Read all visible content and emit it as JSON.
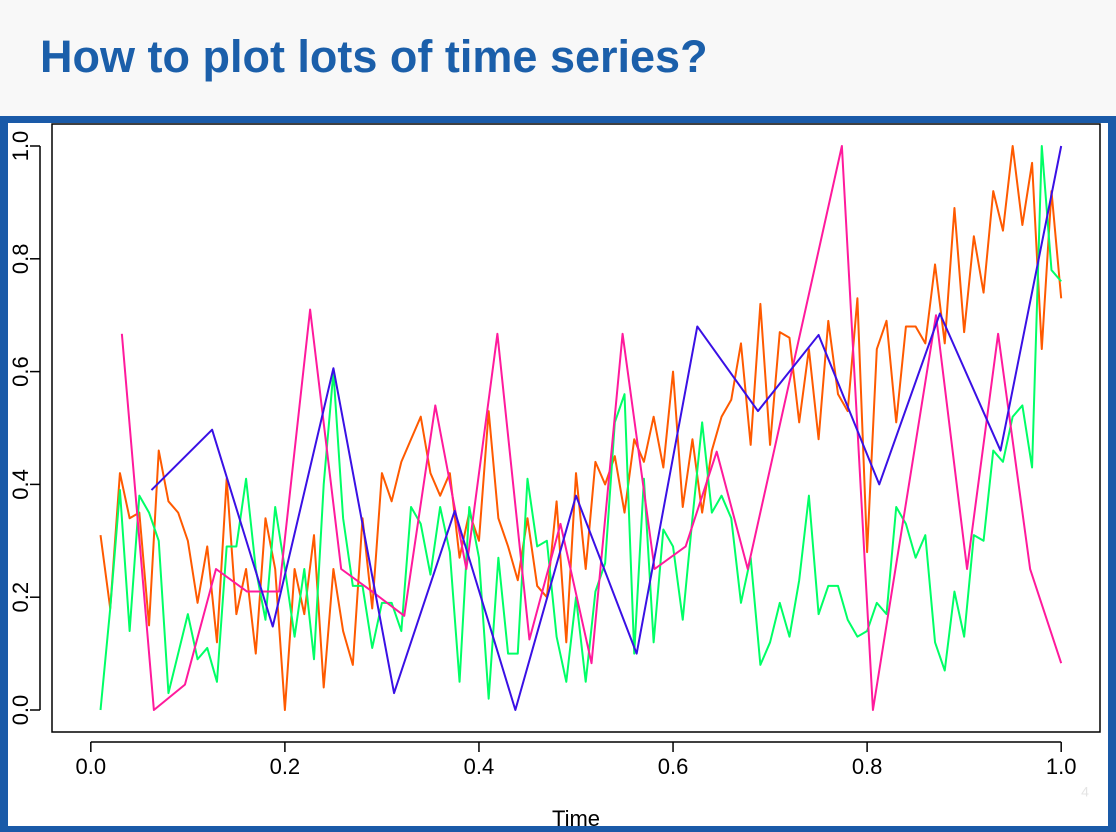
{
  "title": "How to plot lots of time series?",
  "page_number": "4",
  "chart_data": {
    "type": "line",
    "xlabel": "Time",
    "xlim": [
      -0.04,
      1.04
    ],
    "ylim": [
      -0.039,
      1.039
    ],
    "xticks": [
      {
        "value": 0,
        "label": "0.0"
      },
      0.2,
      0.4,
      0.6,
      0.8,
      {
        "value": 1,
        "label": "1.0"
      }
    ],
    "yticks": [
      {
        "value": 0,
        "label": "0.0"
      },
      0.2,
      0.4,
      0.6,
      0.8,
      {
        "value": 1,
        "label": "1.0"
      }
    ],
    "x": [
      0.01,
      0.02,
      0.03,
      0.04,
      0.05,
      0.06,
      0.07,
      0.08,
      0.09,
      0.1,
      0.11,
      0.12,
      0.13,
      0.14,
      0.15,
      0.16,
      0.17,
      0.18,
      0.19,
      0.2,
      0.21,
      0.22,
      0.23,
      0.24,
      0.25,
      0.26,
      0.27,
      0.28,
      0.29,
      0.3,
      0.31,
      0.32,
      0.33,
      0.34,
      0.35,
      0.36,
      0.37,
      0.38,
      0.39,
      0.4,
      0.41,
      0.42,
      0.43,
      0.44,
      0.45,
      0.46,
      0.47,
      0.48,
      0.49,
      0.5,
      0.51,
      0.52,
      0.53,
      0.54,
      0.55,
      0.56,
      0.57,
      0.58,
      0.59,
      0.6,
      0.61,
      0.62,
      0.63,
      0.64,
      0.65,
      0.66,
      0.67,
      0.68,
      0.69,
      0.7,
      0.71,
      0.72,
      0.73,
      0.74,
      0.75,
      0.76,
      0.77,
      0.78,
      0.79,
      0.8,
      0.81,
      0.82,
      0.83,
      0.84,
      0.85,
      0.86,
      0.87,
      0.88,
      0.89,
      0.9,
      0.91,
      0.92,
      0.93,
      0.94,
      0.95,
      0.96,
      0.97,
      0.98,
      0.99,
      1.0
    ],
    "series": [
      {
        "color": "#ff5a00",
        "values": [
          0.31,
          0.18,
          0.42,
          0.34,
          0.35,
          0.15,
          0.46,
          0.37,
          0.35,
          0.3,
          0.19,
          0.29,
          0.12,
          0.41,
          0.17,
          0.25,
          0.1,
          0.34,
          0.25,
          0.0,
          0.25,
          0.17,
          0.31,
          0.04,
          0.25,
          0.14,
          0.08,
          0.34,
          0.18,
          0.42,
          0.37,
          0.44,
          0.48,
          0.52,
          0.42,
          0.38,
          0.42,
          0.27,
          0.35,
          0.3,
          0.53,
          0.34,
          0.29,
          0.23,
          0.34,
          0.22,
          0.2,
          0.37,
          0.12,
          0.42,
          0.25,
          0.44,
          0.4,
          0.45,
          0.35,
          0.48,
          0.44,
          0.52,
          0.43,
          0.6,
          0.36,
          0.48,
          0.35,
          0.46,
          0.52,
          0.55,
          0.65,
          0.47,
          0.72,
          0.47,
          0.67,
          0.66,
          0.51,
          0.64,
          0.48,
          0.69,
          0.56,
          0.53,
          0.73,
          0.28,
          0.64,
          0.69,
          0.51,
          0.68,
          0.68,
          0.65,
          0.79,
          0.65,
          0.89,
          0.67,
          0.84,
          0.74,
          0.92,
          0.85,
          1.0,
          0.86,
          0.97,
          0.64,
          0.92,
          0.73
        ]
      },
      {
        "color": "#00ff66",
        "values": [
          0.0,
          0.18,
          0.39,
          0.14,
          0.38,
          0.35,
          0.3,
          0.03,
          0.1,
          0.17,
          0.09,
          0.11,
          0.05,
          0.29,
          0.29,
          0.41,
          0.25,
          0.16,
          0.36,
          0.25,
          0.13,
          0.25,
          0.09,
          0.4,
          0.6,
          0.34,
          0.22,
          0.22,
          0.11,
          0.19,
          0.19,
          0.14,
          0.36,
          0.33,
          0.24,
          0.36,
          0.28,
          0.05,
          0.36,
          0.27,
          0.02,
          0.27,
          0.1,
          0.1,
          0.41,
          0.29,
          0.3,
          0.13,
          0.05,
          0.2,
          0.05,
          0.21,
          0.26,
          0.51,
          0.56,
          0.1,
          0.41,
          0.12,
          0.32,
          0.29,
          0.16,
          0.34,
          0.51,
          0.35,
          0.38,
          0.34,
          0.19,
          0.27,
          0.08,
          0.12,
          0.19,
          0.13,
          0.23,
          0.38,
          0.17,
          0.22,
          0.22,
          0.16,
          0.13,
          0.14,
          0.19,
          0.17,
          0.36,
          0.33,
          0.27,
          0.31,
          0.12,
          0.07,
          0.21,
          0.13,
          0.31,
          0.3,
          0.46,
          0.44,
          0.52,
          0.54,
          0.43,
          1.0,
          0.78,
          0.76
        ]
      },
      {
        "color": "#ff1a9c",
        "x": [
          0.032,
          0.065,
          0.097,
          0.129,
          0.161,
          0.194,
          0.226,
          0.258,
          0.29,
          0.323,
          0.355,
          0.387,
          0.419,
          0.452,
          0.484,
          0.516,
          0.548,
          0.581,
          0.613,
          0.645,
          0.677,
          0.774,
          0.806,
          0.871,
          0.903,
          0.935,
          0.968,
          1.0
        ],
        "values": [
          0.667,
          0.0,
          0.045,
          0.25,
          0.21,
          0.21,
          0.71,
          0.25,
          0.21,
          0.167,
          0.54,
          0.25,
          0.667,
          0.125,
          0.33,
          0.083,
          0.667,
          0.25,
          0.29,
          0.458,
          0.25,
          1.0,
          0.0,
          0.7,
          0.25,
          0.667,
          0.25,
          0.083
        ]
      },
      {
        "color": "#3a10e5",
        "x": [
          0.0625,
          0.125,
          0.1875,
          0.25,
          0.3125,
          0.375,
          0.4375,
          0.5,
          0.5625,
          0.625,
          0.6875,
          0.75,
          0.8125,
          0.875,
          0.9375,
          1.0
        ],
        "values": [
          0.39,
          0.497,
          0.148,
          0.606,
          0.03,
          0.353,
          0.0,
          0.38,
          0.1,
          0.68,
          0.53,
          0.665,
          0.4,
          0.703,
          0.46,
          1.0
        ]
      }
    ]
  }
}
